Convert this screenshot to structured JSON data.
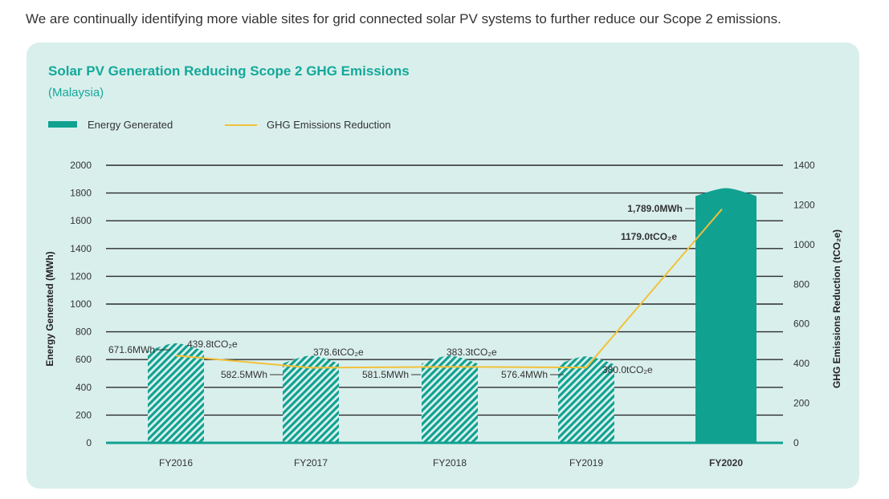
{
  "intro_text": "We are continually identifying more viable sites for grid connected solar PV systems to further reduce our Scope 2 emissions.",
  "colors": {
    "bar": "#11a191",
    "bar_hatch_bg": "#dcf1ee",
    "line": "#f2c13a",
    "card_bg": "#d9efec",
    "title": "#14a89a"
  },
  "chart_data": {
    "type": "bar",
    "title": "Solar PV Generation Reducing Scope 2 GHG Emissions",
    "subtitle": "(Malaysia)",
    "categories": [
      "FY2016",
      "FY2017",
      "FY2018",
      "FY2019",
      "FY2020"
    ],
    "highlighted_category": "FY2020",
    "ylabel": "Energy Generated (MWh)",
    "y2label": "GHG Emissions Reduction (tCO₂e)",
    "ylim": [
      0,
      2000
    ],
    "y_ticks": [
      "0",
      "200",
      "400",
      "600",
      "800",
      "1000",
      "1200",
      "1400",
      "1600",
      "1800",
      "2000"
    ],
    "y2lim": [
      0,
      1400
    ],
    "y2_ticks": [
      "0",
      "200",
      "400",
      "600",
      "800",
      "1000",
      "1200",
      "1400"
    ],
    "grid": true,
    "legend_position": "top-left",
    "series": [
      {
        "name": "Energy Generated",
        "type": "bar",
        "axis": "left",
        "values": [
          671.6,
          582.5,
          581.5,
          576.4,
          1789.0
        ],
        "labels": [
          "671.6MWh",
          "582.5MWh",
          "581.5MWh",
          "576.4MWh",
          "1,789.0MWh"
        ]
      },
      {
        "name": "GHG Emissions Reduction",
        "type": "line",
        "axis": "right",
        "values": [
          439.8,
          378.6,
          383.3,
          380.0,
          1179.0
        ],
        "labels": [
          "439.8tCO₂e",
          "378.6tCO₂e",
          "383.3tCO₂e",
          "380.0tCO₂e",
          "1179.0tCO₂e"
        ]
      }
    ]
  }
}
